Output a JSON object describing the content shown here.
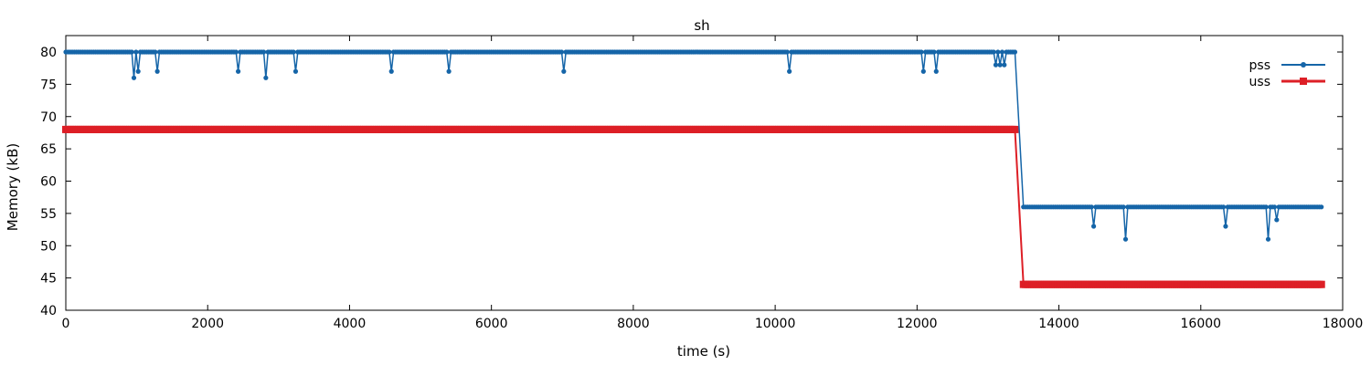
{
  "chart_data": {
    "type": "line",
    "title": "sh",
    "xlabel": "time (s)",
    "ylabel": "Memory (kB)",
    "xlim": [
      0,
      18000
    ],
    "ylim": [
      40,
      80
    ],
    "x_ticks": [
      "0",
      "2000",
      "4000",
      "6000",
      "8000",
      "10000",
      "12000",
      "14000",
      "16000",
      "18000"
    ],
    "y_ticks": [
      "40",
      "45",
      "50",
      "55",
      "60",
      "65",
      "70",
      "75",
      "80"
    ],
    "grid": false,
    "legend_position": "top-right",
    "sample_interval": 30,
    "series": [
      {
        "name": "pss",
        "color": "#1565a8",
        "marker": "circle",
        "baseline": [
          {
            "from": 0,
            "to": 13400,
            "value": 80
          },
          {
            "from": 13500,
            "to": 17700,
            "value": 56
          }
        ],
        "dips": [
          {
            "x": 950,
            "value": 76
          },
          {
            "x": 1030,
            "value": 77
          },
          {
            "x": 1300,
            "value": 77
          },
          {
            "x": 2420,
            "value": 77
          },
          {
            "x": 2820,
            "value": 76
          },
          {
            "x": 3230,
            "value": 77
          },
          {
            "x": 4580,
            "value": 77
          },
          {
            "x": 5400,
            "value": 77
          },
          {
            "x": 7020,
            "value": 77
          },
          {
            "x": 10200,
            "value": 77
          },
          {
            "x": 12100,
            "value": 77
          },
          {
            "x": 12280,
            "value": 77
          },
          {
            "x": 13110,
            "value": 78
          },
          {
            "x": 13170,
            "value": 78
          },
          {
            "x": 13230,
            "value": 78
          },
          {
            "x": 14500,
            "value": 53
          },
          {
            "x": 14950,
            "value": 51
          },
          {
            "x": 16350,
            "value": 53
          },
          {
            "x": 16950,
            "value": 51
          },
          {
            "x": 17060,
            "value": 54
          }
        ]
      },
      {
        "name": "uss",
        "color": "#dd1f26",
        "marker": "square",
        "baseline": [
          {
            "from": 0,
            "to": 13400,
            "value": 68
          },
          {
            "from": 13500,
            "to": 17700,
            "value": 44
          }
        ],
        "dips": []
      }
    ]
  }
}
